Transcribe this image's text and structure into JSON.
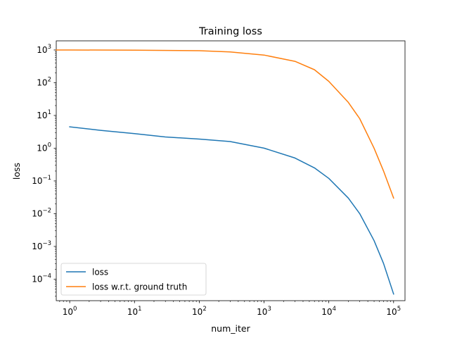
{
  "chart_data": {
    "type": "line",
    "title": "Training loss",
    "xlabel": "num_iter",
    "ylabel": "loss",
    "xscale": "log",
    "yscale": "log",
    "xlim": [
      0.62,
      150000
    ],
    "ylim": [
      2.2e-05,
      1900
    ],
    "grid": false,
    "legend_position": "lower-left",
    "xticks": [
      {
        "value": 1,
        "base": "10",
        "exp": "0"
      },
      {
        "value": 10,
        "base": "10",
        "exp": "1"
      },
      {
        "value": 100,
        "base": "10",
        "exp": "2"
      },
      {
        "value": 1000,
        "base": "10",
        "exp": "3"
      },
      {
        "value": 10000,
        "base": "10",
        "exp": "4"
      },
      {
        "value": 100000,
        "base": "10",
        "exp": "5"
      }
    ],
    "yticks": [
      {
        "value": 0.0001,
        "base": "10",
        "exp": "−4"
      },
      {
        "value": 0.001,
        "base": "10",
        "exp": "−3"
      },
      {
        "value": 0.01,
        "base": "10",
        "exp": "−2"
      },
      {
        "value": 0.1,
        "base": "10",
        "exp": "−1"
      },
      {
        "value": 1,
        "base": "10",
        "exp": "0"
      },
      {
        "value": 10,
        "base": "10",
        "exp": "1"
      },
      {
        "value": 100,
        "base": "10",
        "exp": "2"
      },
      {
        "value": 1000,
        "base": "10",
        "exp": "3"
      }
    ],
    "series": [
      {
        "name": "loss",
        "color": "#1f77b4",
        "points": [
          [
            1,
            4.5
          ],
          [
            3,
            3.5
          ],
          [
            10,
            2.8
          ],
          [
            30,
            2.2
          ],
          [
            100,
            1.9
          ],
          [
            300,
            1.6
          ],
          [
            1000,
            1.0
          ],
          [
            3000,
            0.5
          ],
          [
            6000,
            0.25
          ],
          [
            10000,
            0.12
          ],
          [
            20000,
            0.03
          ],
          [
            30000,
            0.01
          ],
          [
            50000,
            0.0015
          ],
          [
            70000,
            0.0003
          ],
          [
            100000,
            3.5e-05
          ]
        ]
      },
      {
        "name": "loss w.r.t. ground truth",
        "color": "#ff7f0e",
        "points": [
          [
            0.62,
            1000
          ],
          [
            1,
            1000
          ],
          [
            10,
            990
          ],
          [
            100,
            950
          ],
          [
            300,
            870
          ],
          [
            1000,
            700
          ],
          [
            3000,
            450
          ],
          [
            6000,
            250
          ],
          [
            10000,
            110
          ],
          [
            20000,
            25
          ],
          [
            30000,
            8
          ],
          [
            50000,
            1
          ],
          [
            70000,
            0.2
          ],
          [
            100000,
            0.03
          ]
        ]
      }
    ]
  }
}
